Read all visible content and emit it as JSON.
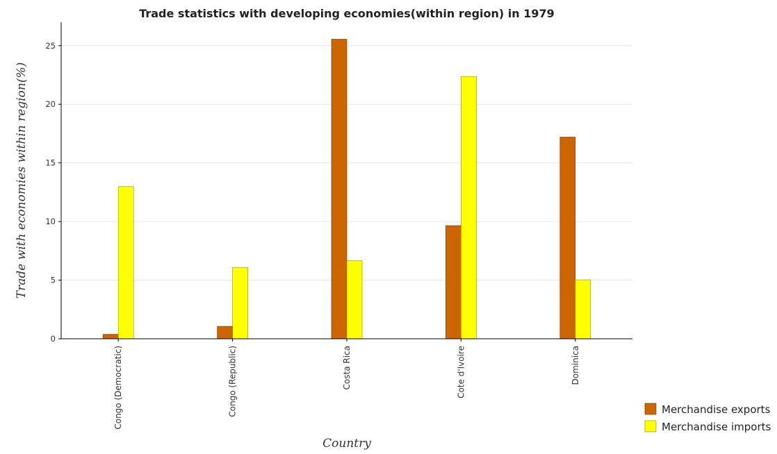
{
  "chart_data": {
    "type": "bar",
    "title": "Trade statistics with developing economies(within region) in 1979",
    "xlabel": "Country",
    "ylabel": "Trade with economies within region(%)",
    "categories": [
      "Congo (Democratic)",
      "Congo (Republic)",
      "Costa Rica",
      "Cote d'Ivoire",
      "Dominica"
    ],
    "series": [
      {
        "name": "Merchandise exports",
        "color": "#cc6600",
        "values": [
          0.38,
          1.06,
          25.55,
          9.65,
          17.2
        ]
      },
      {
        "name": "Merchandise imports",
        "color": "#ffff00",
        "values": [
          12.98,
          6.09,
          6.66,
          22.37,
          5.03
        ]
      }
    ],
    "yticks": [
      0,
      5,
      10,
      15,
      20,
      25
    ],
    "ylim": [
      0,
      27
    ],
    "grid": true,
    "legend_position": "bottom-right"
  }
}
